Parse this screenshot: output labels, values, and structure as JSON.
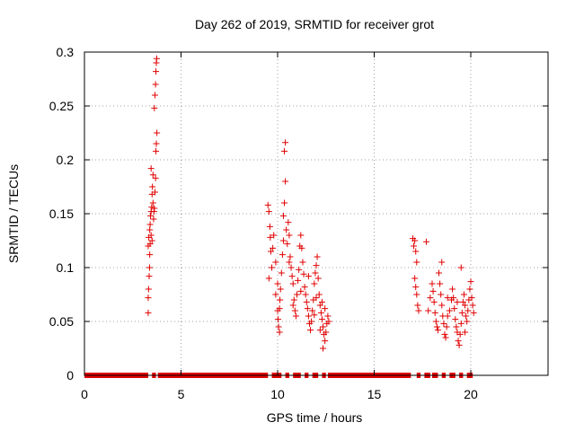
{
  "chart_data": {
    "type": "scatter",
    "title": "Day 262 of 2019, SRMTID for receiver grot",
    "xlabel": "GPS time / hours",
    "ylabel": "SRMTID / TECUs",
    "xlim": [
      0,
      24
    ],
    "ylim": [
      0,
      0.3
    ],
    "xticks": [
      0,
      5,
      10,
      15,
      20
    ],
    "yticks": [
      0,
      0.05,
      0.1,
      0.15,
      0.2,
      0.25,
      0.3
    ],
    "xtick_labels": [
      "0",
      "5",
      "10",
      "15",
      "20"
    ],
    "ytick_labels": [
      "0",
      "0.05",
      "0.1",
      "0.15",
      "0.2",
      "0.25",
      "0.3"
    ],
    "grid": true,
    "marker": "+",
    "color": "#e00000",
    "series": [
      {
        "name": "SRMTID",
        "points": [
          [
            3.3,
            0.058
          ],
          [
            3.3,
            0.072
          ],
          [
            3.32,
            0.08
          ],
          [
            3.35,
            0.092
          ],
          [
            3.37,
            0.1
          ],
          [
            3.38,
            0.112
          ],
          [
            3.3,
            0.12
          ],
          [
            3.33,
            0.128
          ],
          [
            3.38,
            0.135
          ],
          [
            3.4,
            0.14
          ],
          [
            3.42,
            0.148
          ],
          [
            3.45,
            0.152
          ],
          [
            3.48,
            0.156
          ],
          [
            3.5,
            0.168
          ],
          [
            3.52,
            0.175
          ],
          [
            3.55,
            0.186
          ],
          [
            3.45,
            0.192
          ],
          [
            3.6,
            0.152
          ],
          [
            3.62,
            0.155
          ],
          [
            3.65,
            0.17
          ],
          [
            3.68,
            0.183
          ],
          [
            3.7,
            0.208
          ],
          [
            3.72,
            0.215
          ],
          [
            3.75,
            0.225
          ],
          [
            3.62,
            0.248
          ],
          [
            3.65,
            0.26
          ],
          [
            3.68,
            0.27
          ],
          [
            3.7,
            0.282
          ],
          [
            3.72,
            0.29
          ],
          [
            3.74,
            0.294
          ],
          [
            3.4,
            0.122
          ],
          [
            3.45,
            0.13
          ],
          [
            3.5,
            0.125
          ],
          [
            3.55,
            0.16
          ],
          [
            3.58,
            0.145
          ],
          [
            9.5,
            0.158
          ],
          [
            9.55,
            0.152
          ],
          [
            9.6,
            0.138
          ],
          [
            9.62,
            0.128
          ],
          [
            9.65,
            0.115
          ],
          [
            9.7,
            0.1
          ],
          [
            9.55,
            0.09
          ],
          [
            9.75,
            0.118
          ],
          [
            9.8,
            0.13
          ],
          [
            9.9,
            0.105
          ],
          [
            10.0,
            0.085
          ],
          [
            10.0,
            0.06
          ],
          [
            10.02,
            0.052
          ],
          [
            10.05,
            0.045
          ],
          [
            10.1,
            0.04
          ],
          [
            10.12,
            0.07
          ],
          [
            10.15,
            0.08
          ],
          [
            10.2,
            0.095
          ],
          [
            10.25,
            0.112
          ],
          [
            10.3,
            0.148
          ],
          [
            10.35,
            0.16
          ],
          [
            10.4,
            0.18
          ],
          [
            10.35,
            0.208
          ],
          [
            10.4,
            0.216
          ],
          [
            10.45,
            0.135
          ],
          [
            10.5,
            0.122
          ],
          [
            10.55,
            0.142
          ],
          [
            10.6,
            0.13
          ],
          [
            10.65,
            0.11
          ],
          [
            10.7,
            0.1
          ],
          [
            10.75,
            0.092
          ],
          [
            10.8,
            0.085
          ],
          [
            10.85,
            0.07
          ],
          [
            10.9,
            0.06
          ],
          [
            10.95,
            0.055
          ],
          [
            11.0,
            0.075
          ],
          [
            11.05,
            0.088
          ],
          [
            11.1,
            0.098
          ],
          [
            11.15,
            0.12
          ],
          [
            11.2,
            0.13
          ],
          [
            11.25,
            0.118
          ],
          [
            11.3,
            0.105
          ],
          [
            11.35,
            0.094
          ],
          [
            11.4,
            0.082
          ],
          [
            11.45,
            0.075
          ],
          [
            11.5,
            0.068
          ],
          [
            11.55,
            0.062
          ],
          [
            11.6,
            0.055
          ],
          [
            11.65,
            0.048
          ],
          [
            11.7,
            0.042
          ],
          [
            11.75,
            0.05
          ],
          [
            11.8,
            0.06
          ],
          [
            11.85,
            0.07
          ],
          [
            11.9,
            0.085
          ],
          [
            11.95,
            0.095
          ],
          [
            12.0,
            0.102
          ],
          [
            12.05,
            0.11
          ],
          [
            12.1,
            0.09
          ],
          [
            12.15,
            0.075
          ],
          [
            12.2,
            0.065
          ],
          [
            12.25,
            0.058
          ],
          [
            12.3,
            0.052
          ],
          [
            12.35,
            0.045
          ],
          [
            12.4,
            0.038
          ],
          [
            12.45,
            0.032
          ],
          [
            12.5,
            0.04
          ],
          [
            12.55,
            0.048
          ],
          [
            12.6,
            0.055
          ],
          [
            12.65,
            0.05
          ],
          [
            12.35,
            0.025
          ],
          [
            12.45,
            0.062
          ],
          [
            12.2,
            0.042
          ],
          [
            10.3,
            0.125
          ],
          [
            10.6,
            0.105
          ],
          [
            10.8,
            0.065
          ],
          [
            11.2,
            0.078
          ],
          [
            11.6,
            0.092
          ],
          [
            11.9,
            0.056
          ],
          [
            12.0,
            0.072
          ],
          [
            12.3,
            0.068
          ],
          [
            9.9,
            0.075
          ],
          [
            10.1,
            0.062
          ],
          [
            17.0,
            0.127
          ],
          [
            17.05,
            0.12
          ],
          [
            17.1,
            0.125
          ],
          [
            17.15,
            0.115
          ],
          [
            17.2,
            0.105
          ],
          [
            17.1,
            0.09
          ],
          [
            17.15,
            0.082
          ],
          [
            17.2,
            0.075
          ],
          [
            17.25,
            0.065
          ],
          [
            17.3,
            0.06
          ],
          [
            17.7,
            0.124
          ],
          [
            17.8,
            0.06
          ],
          [
            17.9,
            0.072
          ],
          [
            18.0,
            0.085
          ],
          [
            18.05,
            0.078
          ],
          [
            18.1,
            0.068
          ],
          [
            18.15,
            0.058
          ],
          [
            18.2,
            0.05
          ],
          [
            18.25,
            0.045
          ],
          [
            18.3,
            0.042
          ],
          [
            18.35,
            0.095
          ],
          [
            18.4,
            0.085
          ],
          [
            18.45,
            0.075
          ],
          [
            18.5,
            0.065
          ],
          [
            18.55,
            0.055
          ],
          [
            18.6,
            0.048
          ],
          [
            18.65,
            0.038
          ],
          [
            18.7,
            0.035
          ],
          [
            18.75,
            0.045
          ],
          [
            18.8,
            0.055
          ],
          [
            18.9,
            0.06
          ],
          [
            19.0,
            0.07
          ],
          [
            19.05,
            0.08
          ],
          [
            19.1,
            0.072
          ],
          [
            19.15,
            0.062
          ],
          [
            19.2,
            0.052
          ],
          [
            19.25,
            0.045
          ],
          [
            19.3,
            0.04
          ],
          [
            19.35,
            0.032
          ],
          [
            19.4,
            0.028
          ],
          [
            19.45,
            0.038
          ],
          [
            19.5,
            0.048
          ],
          [
            19.55,
            0.058
          ],
          [
            19.6,
            0.068
          ],
          [
            19.65,
            0.075
          ],
          [
            19.7,
            0.065
          ],
          [
            19.75,
            0.055
          ],
          [
            19.8,
            0.05
          ],
          [
            19.85,
            0.06
          ],
          [
            19.9,
            0.07
          ],
          [
            19.95,
            0.08
          ],
          [
            20.0,
            0.087
          ],
          [
            20.05,
            0.072
          ],
          [
            20.1,
            0.065
          ],
          [
            20.15,
            0.058
          ],
          [
            19.5,
            0.1
          ],
          [
            18.5,
            0.105
          ],
          [
            19.3,
            0.068
          ],
          [
            18.8,
            0.072
          ],
          [
            19.7,
            0.04
          ]
        ]
      }
    ],
    "zero_band": {
      "y": 0,
      "segments": [
        [
          0.0,
          3.3
        ],
        [
          3.5,
          3.7
        ],
        [
          3.8,
          9.5
        ],
        [
          9.7,
          10.2
        ],
        [
          10.4,
          10.6
        ],
        [
          10.8,
          11.2
        ],
        [
          11.4,
          11.6
        ],
        [
          11.8,
          12.1
        ],
        [
          12.3,
          12.5
        ],
        [
          12.6,
          16.9
        ],
        [
          17.2,
          17.4
        ],
        [
          17.6,
          17.9
        ],
        [
          18.0,
          18.3
        ],
        [
          18.5,
          18.7
        ],
        [
          18.9,
          19.2
        ],
        [
          19.4,
          19.6
        ],
        [
          19.8,
          20.1
        ]
      ]
    }
  }
}
